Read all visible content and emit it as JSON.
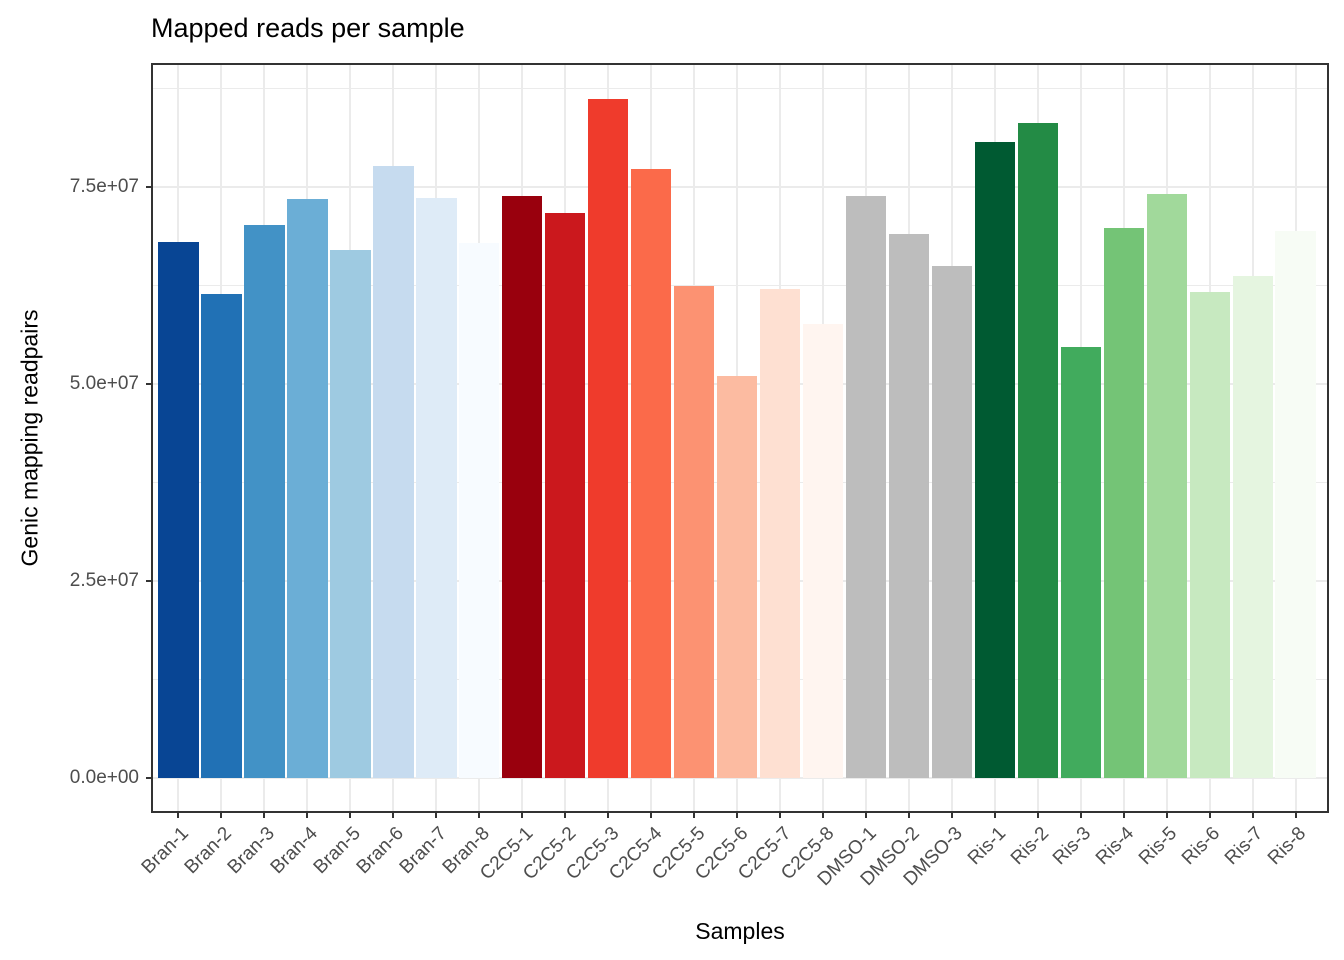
{
  "chart_data": {
    "type": "bar",
    "title": "Mapped reads per sample",
    "xlabel": "Samples",
    "ylabel": "Genic mapping readpairs",
    "ylim": [
      -4170000,
      90530000
    ],
    "grid": true,
    "legend": "none",
    "categories": [
      "Bran-1",
      "Bran-2",
      "Bran-3",
      "Bran-4",
      "Bran-5",
      "Bran-6",
      "Bran-7",
      "Bran-8",
      "C2C5-1",
      "C2C5-2",
      "C2C5-3",
      "C2C5-4",
      "C2C5-5",
      "C2C5-6",
      "C2C5-7",
      "C2C5-8",
      "DMSO-1",
      "DMSO-2",
      "DMSO-3",
      "Ris-1",
      "Ris-2",
      "Ris-3",
      "Ris-4",
      "Ris-5",
      "Ris-6",
      "Ris-7",
      "Ris-8"
    ],
    "values": [
      68100000,
      61500000,
      70200000,
      73500000,
      67000000,
      77700000,
      73700000,
      67900000,
      73900000,
      71800000,
      86200000,
      77300000,
      62500000,
      51000000,
      62100000,
      57700000,
      73900000,
      69100000,
      65000000,
      80700000,
      83200000,
      54700000,
      69800000,
      74200000,
      61700000,
      63800000,
      69400000
    ],
    "bar_colors": [
      "#084594",
      "#2171B5",
      "#4292C6",
      "#6BAED6",
      "#9ECAE1",
      "#C6DBEF",
      "#DEEBF7",
      "#F7FBFF",
      "#99000D",
      "#CB181D",
      "#EF3B2C",
      "#FB6A4A",
      "#FC9272",
      "#FCBBA1",
      "#FEE0D2",
      "#FFF5F0",
      "#BDBDBD",
      "#BDBDBD",
      "#BDBDBD",
      "#005A32",
      "#238B45",
      "#41AB5D",
      "#74C476",
      "#A1D99B",
      "#C7E9C0",
      "#E5F5E0",
      "#F7FCF5"
    ],
    "y_ticks": [
      {
        "value": 0,
        "label": "0.0e+00"
      },
      {
        "value": 25000000,
        "label": "2.5e+07"
      },
      {
        "value": 50000000,
        "label": "5.0e+07"
      },
      {
        "value": 75000000,
        "label": "7.5e+07"
      }
    ],
    "y_minor_ticks": [
      12500000,
      37500000,
      62500000,
      87500000
    ],
    "colors_meaning": {
      "Bran": "blue gradient dark to light",
      "C2C5": "red gradient dark to light",
      "DMSO": "grey",
      "Ris": "green gradient dark to light"
    },
    "panel_border_color": "#333333",
    "grid_color": "#EBEBEB",
    "tick_text_color": "#4D4D4D"
  }
}
